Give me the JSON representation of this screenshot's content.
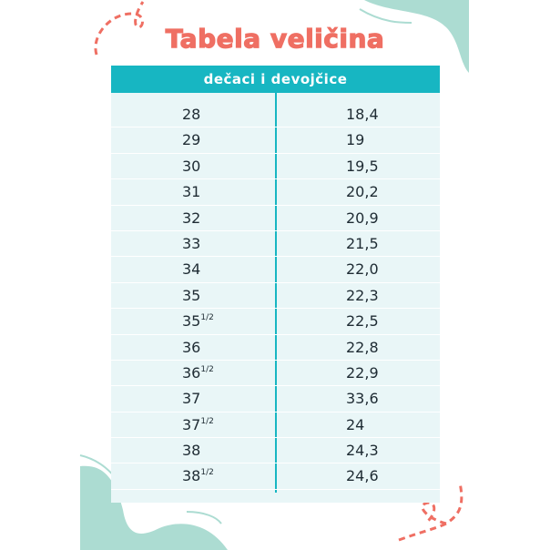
{
  "title": "Tabela veličina",
  "table": {
    "header": "dečaci i devojčice",
    "rows": [
      {
        "size": "28",
        "fraction": "",
        "cm": "18,4"
      },
      {
        "size": "29",
        "fraction": "",
        "cm": "19"
      },
      {
        "size": "30",
        "fraction": "",
        "cm": "19,5"
      },
      {
        "size": "31",
        "fraction": "",
        "cm": "20,2"
      },
      {
        "size": "32",
        "fraction": "",
        "cm": "20,9"
      },
      {
        "size": "33",
        "fraction": "",
        "cm": "21,5"
      },
      {
        "size": "34",
        "fraction": "",
        "cm": "22,0"
      },
      {
        "size": "35",
        "fraction": "",
        "cm": "22,3"
      },
      {
        "size": "35",
        "fraction": "1/2",
        "cm": "22,5"
      },
      {
        "size": "36",
        "fraction": "",
        "cm": "22,8"
      },
      {
        "size": "36",
        "fraction": "1/2",
        "cm": "22,9"
      },
      {
        "size": "37",
        "fraction": "",
        "cm": "33,6"
      },
      {
        "size": "37",
        "fraction": "1/2",
        "cm": "24"
      },
      {
        "size": "38",
        "fraction": "",
        "cm": "24,3"
      },
      {
        "size": "38",
        "fraction": "1/2",
        "cm": "24,6"
      }
    ]
  },
  "colors": {
    "title": "#ef6f63",
    "header": "#17b6c2",
    "table_bg": "#e9f6f7",
    "blob": "#acdcd2"
  }
}
